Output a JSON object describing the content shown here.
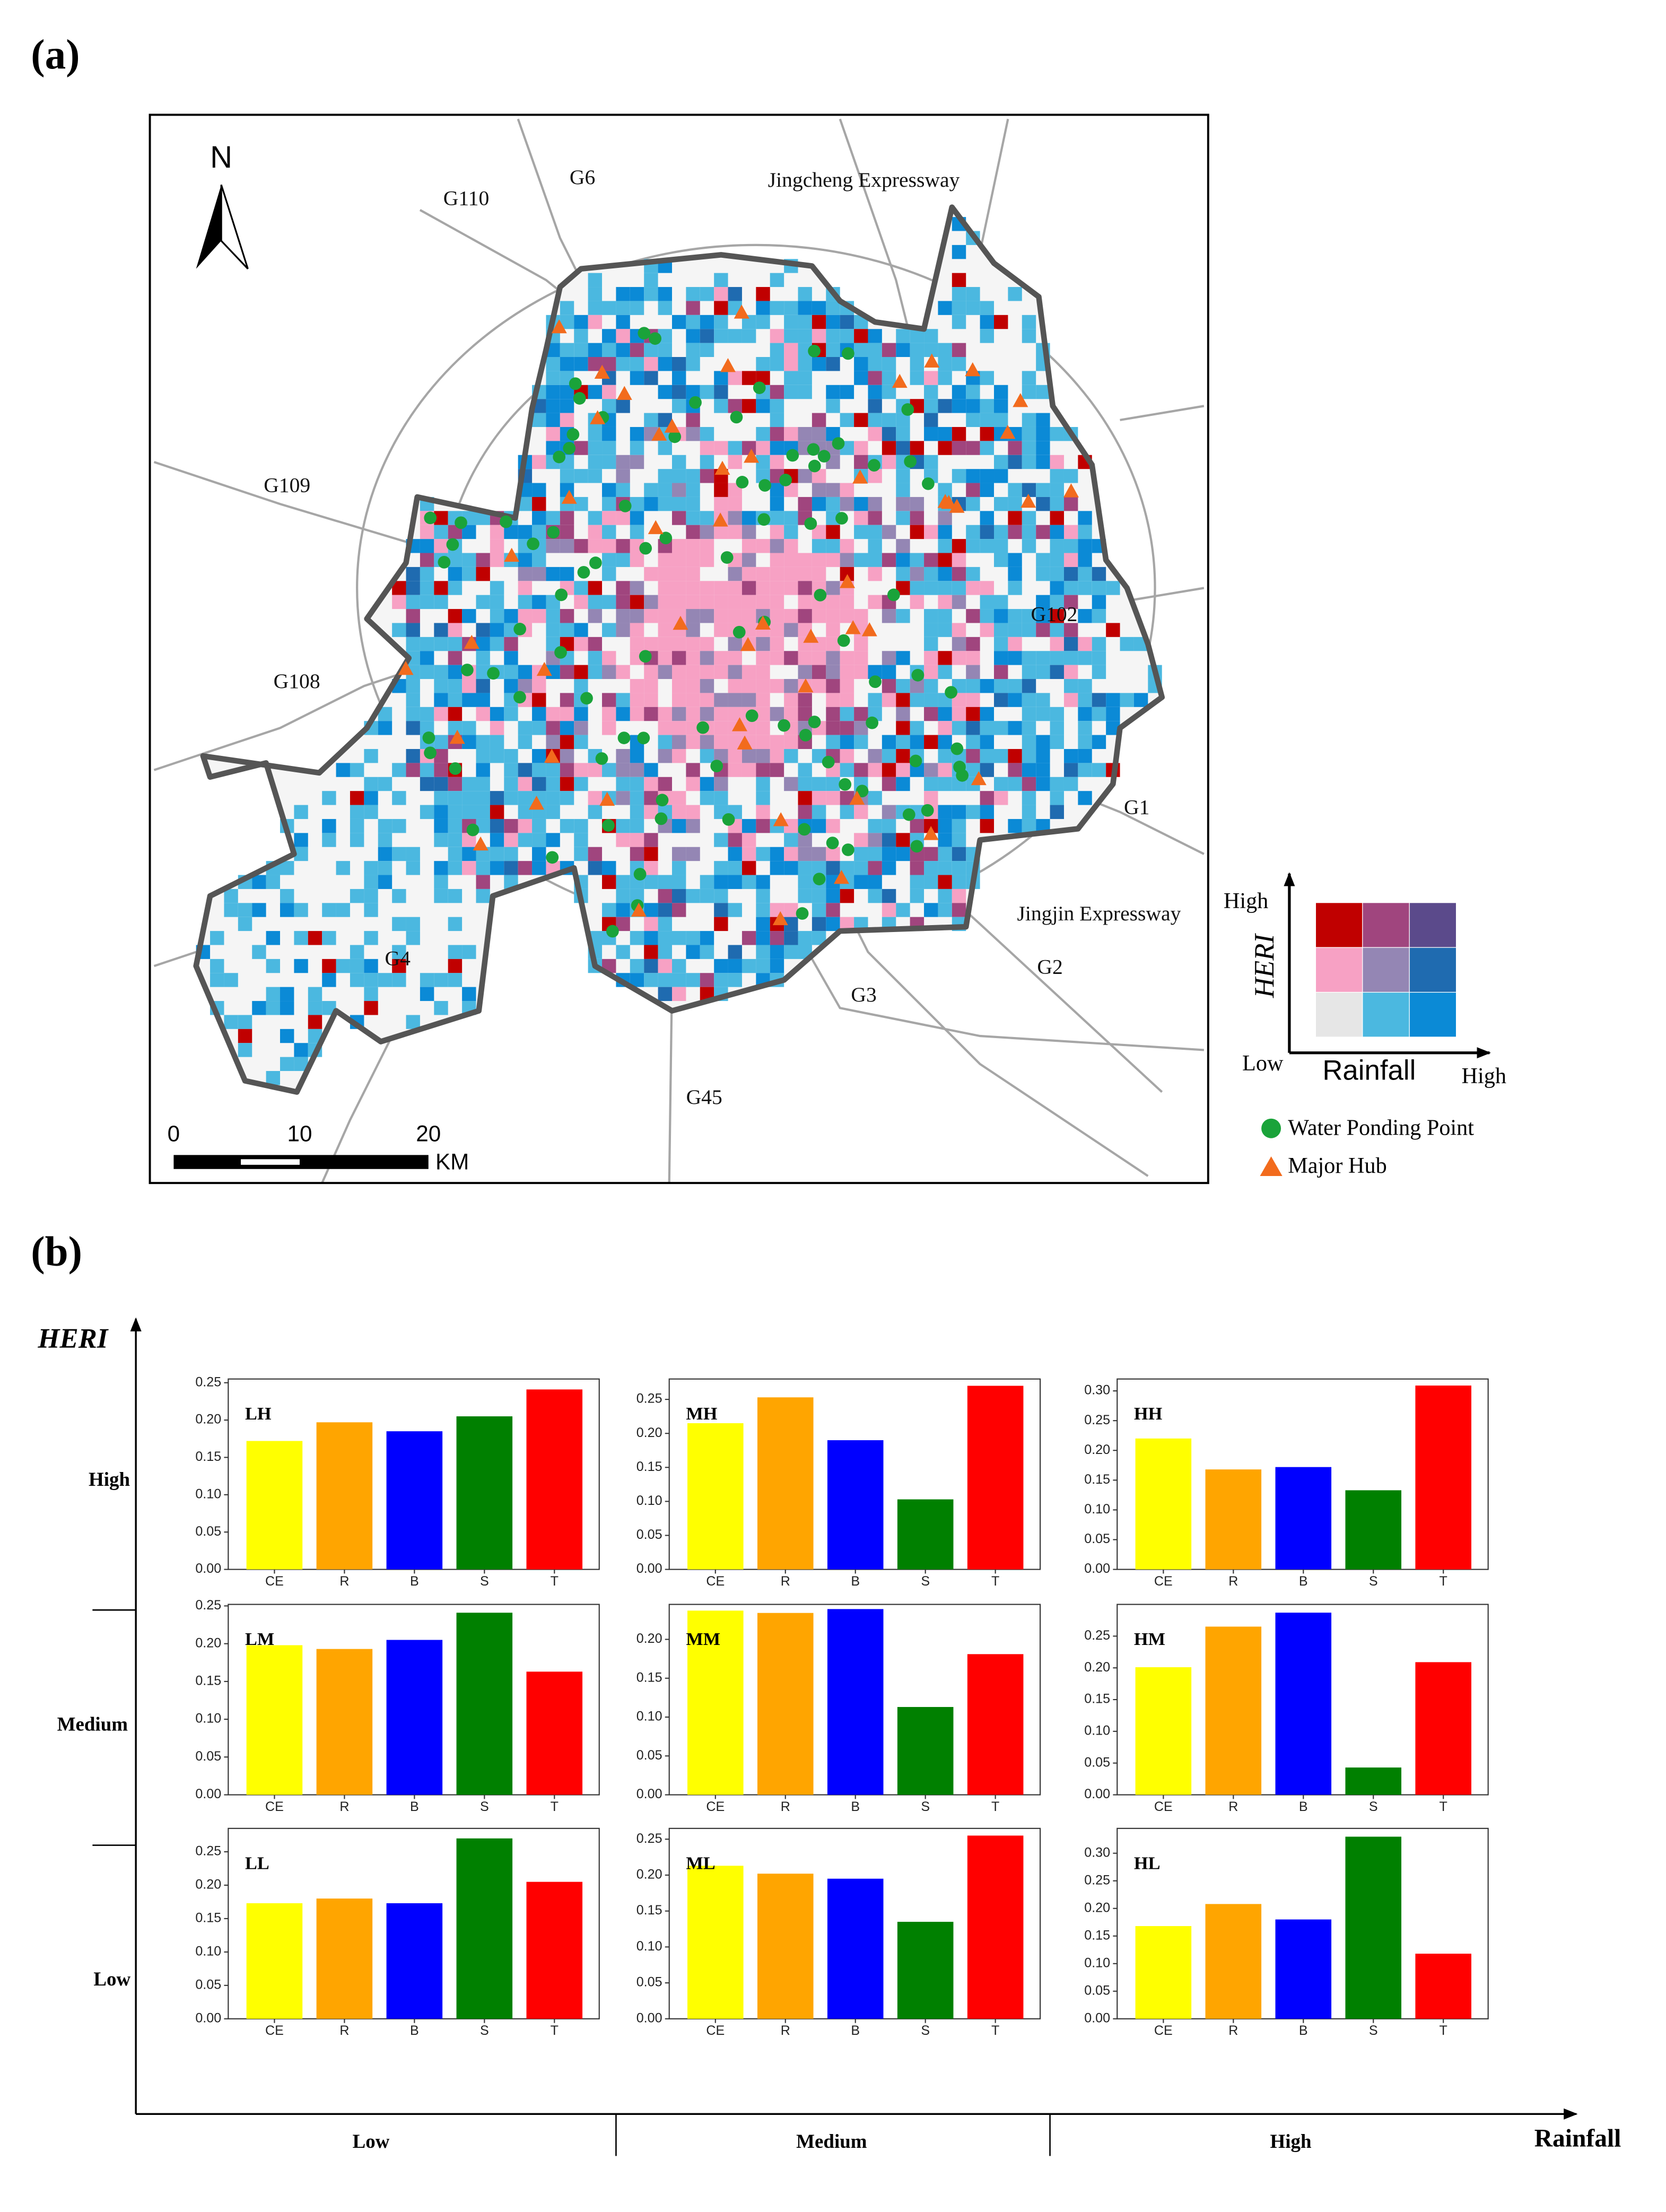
{
  "panel_a": {
    "label": "(a)",
    "north": "N",
    "roads": [
      "G6",
      "G110",
      "Jingcheng Expressway",
      "G109",
      "G108",
      "G102",
      "G1",
      "Jingjin Expressway",
      "G2",
      "G3",
      "G4",
      "G45"
    ],
    "scale": {
      "labels": [
        "0",
        "10",
        "20"
      ],
      "unit": "KM"
    },
    "legend": {
      "y_high": "High",
      "y_low": "Low",
      "y_axis": "HERI",
      "x_axis": "Rainfall",
      "x_high": "High",
      "matrix": [
        [
          "#c00000",
          "#a0457e",
          "#5b4a8b"
        ],
        [
          "#f7a1c4",
          "#9486b4",
          "#1f6bb0"
        ],
        [
          "#e6e6e6",
          "#4bb8e0",
          "#0b8ad6"
        ]
      ],
      "items": [
        {
          "name": "Water Ponding Point",
          "color": "#1aa33a"
        },
        {
          "name": "Major Hub",
          "color": "#f26b1d"
        }
      ]
    }
  },
  "panel_b": {
    "label": "(b)",
    "y_axis": "HERI",
    "x_axis": "Rainfall",
    "rows": [
      "High",
      "Medium",
      "Low"
    ],
    "columns": [
      "Low",
      "Medium",
      "High"
    ]
  },
  "chart_data": [
    {
      "type": "bar",
      "label": "LH",
      "categories": [
        "CE",
        "R",
        "B",
        "S",
        "T"
      ],
      "values": [
        0.172,
        0.197,
        0.185,
        0.205,
        0.241
      ],
      "colors": [
        "#ffff00",
        "#ffa500",
        "#0000ff",
        "#008000",
        "#ff0000"
      ],
      "ylim": [
        0,
        0.255
      ],
      "yticks": [
        {
          "value": 0,
          "label": "0.00"
        },
        {
          "value": 0.05,
          "label": "0.05"
        },
        {
          "value": 0.1,
          "label": "0.10"
        },
        {
          "value": 0.15,
          "label": "0.15"
        },
        {
          "value": 0.2,
          "label": "0.20"
        },
        {
          "value": 0.25,
          "label": "0.25"
        }
      ]
    },
    {
      "type": "bar",
      "label": "MH",
      "categories": [
        "CE",
        "R",
        "B",
        "S",
        "T"
      ],
      "values": [
        0.215,
        0.253,
        0.19,
        0.103,
        0.27
      ],
      "colors": [
        "#ffff00",
        "#ffa500",
        "#0000ff",
        "#008000",
        "#ff0000"
      ],
      "ylim": [
        0,
        0.28
      ],
      "yticks": [
        {
          "value": 0,
          "label": "0.00"
        },
        {
          "value": 0.05,
          "label": "0.05"
        },
        {
          "value": 0.1,
          "label": "0.10"
        },
        {
          "value": 0.15,
          "label": "0.15"
        },
        {
          "value": 0.2,
          "label": "0.20"
        },
        {
          "value": 0.25,
          "label": "0.25"
        }
      ]
    },
    {
      "type": "bar",
      "label": "HH",
      "categories": [
        "CE",
        "R",
        "B",
        "S",
        "T"
      ],
      "values": [
        0.22,
        0.168,
        0.172,
        0.133,
        0.309
      ],
      "colors": [
        "#ffff00",
        "#ffa500",
        "#0000ff",
        "#008000",
        "#ff0000"
      ],
      "ylim": [
        0,
        0.32
      ],
      "yticks": [
        {
          "value": 0,
          "label": "0.00"
        },
        {
          "value": 0.05,
          "label": "0.05"
        },
        {
          "value": 0.1,
          "label": "0.10"
        },
        {
          "value": 0.15,
          "label": "0.15"
        },
        {
          "value": 0.2,
          "label": "0.20"
        },
        {
          "value": 0.25,
          "label": "0.25"
        },
        {
          "value": 0.3,
          "label": "0.30"
        }
      ]
    },
    {
      "type": "bar",
      "label": "LM",
      "categories": [
        "CE",
        "R",
        "B",
        "S",
        "T"
      ],
      "values": [
        0.198,
        0.193,
        0.205,
        0.241,
        0.163
      ],
      "colors": [
        "#ffff00",
        "#ffa500",
        "#0000ff",
        "#008000",
        "#ff0000"
      ],
      "ylim": [
        0,
        0.252
      ],
      "yticks": [
        {
          "value": 0,
          "label": "0.00"
        },
        {
          "value": 0.05,
          "label": "0.05"
        },
        {
          "value": 0.1,
          "label": "0.10"
        },
        {
          "value": 0.15,
          "label": "0.15"
        },
        {
          "value": 0.2,
          "label": "0.20"
        },
        {
          "value": 0.25,
          "label": "0.25"
        }
      ]
    },
    {
      "type": "bar",
      "label": "MM",
      "categories": [
        "CE",
        "R",
        "B",
        "S",
        "T"
      ],
      "values": [
        0.237,
        0.234,
        0.239,
        0.113,
        0.181
      ],
      "colors": [
        "#ffff00",
        "#ffa500",
        "#0000ff",
        "#008000",
        "#ff0000"
      ],
      "ylim": [
        0,
        0.245
      ],
      "yticks": [
        {
          "value": 0,
          "label": "0.00"
        },
        {
          "value": 0.05,
          "label": "0.05"
        },
        {
          "value": 0.1,
          "label": "0.10"
        },
        {
          "value": 0.15,
          "label": "0.15"
        },
        {
          "value": 0.2,
          "label": "0.20"
        }
      ]
    },
    {
      "type": "bar",
      "label": "HM",
      "categories": [
        "CE",
        "R",
        "B",
        "S",
        "T"
      ],
      "values": [
        0.201,
        0.265,
        0.287,
        0.043,
        0.209
      ],
      "colors": [
        "#ffff00",
        "#ffa500",
        "#0000ff",
        "#008000",
        "#ff0000"
      ],
      "ylim": [
        0,
        0.3
      ],
      "yticks": [
        {
          "value": 0,
          "label": "0.00"
        },
        {
          "value": 0.05,
          "label": "0.05"
        },
        {
          "value": 0.1,
          "label": "0.10"
        },
        {
          "value": 0.15,
          "label": "0.15"
        },
        {
          "value": 0.2,
          "label": "0.20"
        },
        {
          "value": 0.25,
          "label": "0.25"
        }
      ]
    },
    {
      "type": "bar",
      "label": "LL",
      "categories": [
        "CE",
        "R",
        "B",
        "S",
        "T"
      ],
      "values": [
        0.173,
        0.18,
        0.173,
        0.27,
        0.205
      ],
      "colors": [
        "#ffff00",
        "#ffa500",
        "#0000ff",
        "#008000",
        "#ff0000"
      ],
      "ylim": [
        0,
        0.285
      ],
      "yticks": [
        {
          "value": 0,
          "label": "0.00"
        },
        {
          "value": 0.05,
          "label": "0.05"
        },
        {
          "value": 0.1,
          "label": "0.10"
        },
        {
          "value": 0.15,
          "label": "0.15"
        },
        {
          "value": 0.2,
          "label": "0.20"
        },
        {
          "value": 0.25,
          "label": "0.25"
        }
      ]
    },
    {
      "type": "bar",
      "label": "ML",
      "categories": [
        "CE",
        "R",
        "B",
        "S",
        "T"
      ],
      "values": [
        0.213,
        0.202,
        0.195,
        0.135,
        0.255
      ],
      "colors": [
        "#ffff00",
        "#ffa500",
        "#0000ff",
        "#008000",
        "#ff0000"
      ],
      "ylim": [
        0,
        0.265
      ],
      "yticks": [
        {
          "value": 0,
          "label": "0.00"
        },
        {
          "value": 0.05,
          "label": "0.05"
        },
        {
          "value": 0.1,
          "label": "0.10"
        },
        {
          "value": 0.15,
          "label": "0.15"
        },
        {
          "value": 0.2,
          "label": "0.20"
        },
        {
          "value": 0.25,
          "label": "0.25"
        }
      ]
    },
    {
      "type": "bar",
      "label": "HL",
      "categories": [
        "CE",
        "R",
        "B",
        "S",
        "T"
      ],
      "values": [
        0.168,
        0.208,
        0.18,
        0.33,
        0.118
      ],
      "colors": [
        "#ffff00",
        "#ffa500",
        "#0000ff",
        "#008000",
        "#ff0000"
      ],
      "ylim": [
        0,
        0.345
      ],
      "yticks": [
        {
          "value": 0,
          "label": "0.00"
        },
        {
          "value": 0.05,
          "label": "0.05"
        },
        {
          "value": 0.1,
          "label": "0.10"
        },
        {
          "value": 0.15,
          "label": "0.15"
        },
        {
          "value": 0.2,
          "label": "0.20"
        },
        {
          "value": 0.25,
          "label": "0.25"
        },
        {
          "value": 0.3,
          "label": "0.30"
        }
      ]
    }
  ]
}
